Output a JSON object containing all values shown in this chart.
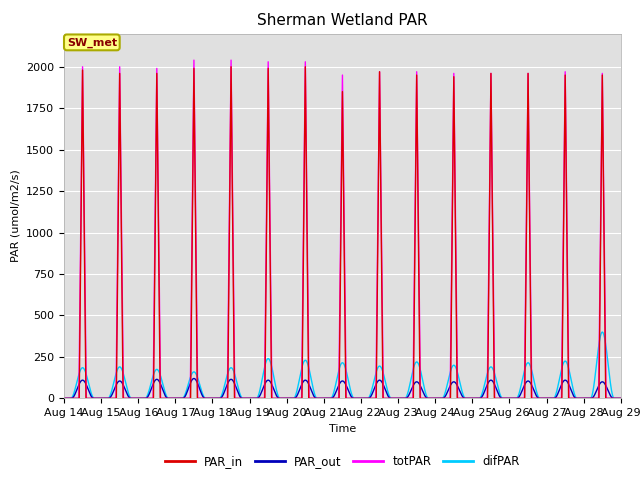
{
  "title": "Sherman Wetland PAR",
  "xlabel": "Time",
  "ylabel": "PAR (umol/m2/s)",
  "ylim": [
    0,
    2200
  ],
  "n_days": 15,
  "tick_labels": [
    "Aug 14",
    "Aug 15",
    "Aug 16",
    "Aug 17",
    "Aug 18",
    "Aug 19",
    "Aug 20",
    "Aug 21",
    "Aug 22",
    "Aug 23",
    "Aug 24",
    "Aug 25",
    "Aug 26",
    "Aug 27",
    "Aug 28",
    "Aug 29"
  ],
  "color_par_in": "#dd0000",
  "color_par_out": "#0000bb",
  "color_totPAR": "#ff00ff",
  "color_difPAR": "#00ccff",
  "background_color": "#e0e0e0",
  "figure_bg": "#ffffff",
  "sw_met_box_color": "#ffff88",
  "sw_met_text_color": "#880000",
  "sw_met_edge_color": "#aaaa00",
  "legend_labels": [
    "PAR_in",
    "PAR_out",
    "totPAR",
    "difPAR"
  ],
  "grid_color": "#ffffff",
  "title_fontsize": 11,
  "axis_fontsize": 8,
  "peaks_totPAR": [
    2000,
    2000,
    1990,
    2040,
    2040,
    2030,
    2030,
    1950,
    1970,
    1970,
    1960,
    1960,
    1960,
    1970,
    1960
  ],
  "peaks_PAR_in": [
    1980,
    1960,
    1960,
    1990,
    2000,
    1990,
    2000,
    1850,
    1970,
    1950,
    1940,
    1960,
    1960,
    1950,
    1950
  ],
  "peaks_PAR_out": [
    110,
    105,
    115,
    120,
    115,
    110,
    110,
    105,
    110,
    100,
    100,
    110,
    105,
    110,
    100
  ],
  "peaks_difPAR": [
    185,
    190,
    175,
    160,
    185,
    240,
    230,
    215,
    195,
    220,
    200,
    190,
    215,
    225,
    400
  ],
  "pts_per_day": 500
}
